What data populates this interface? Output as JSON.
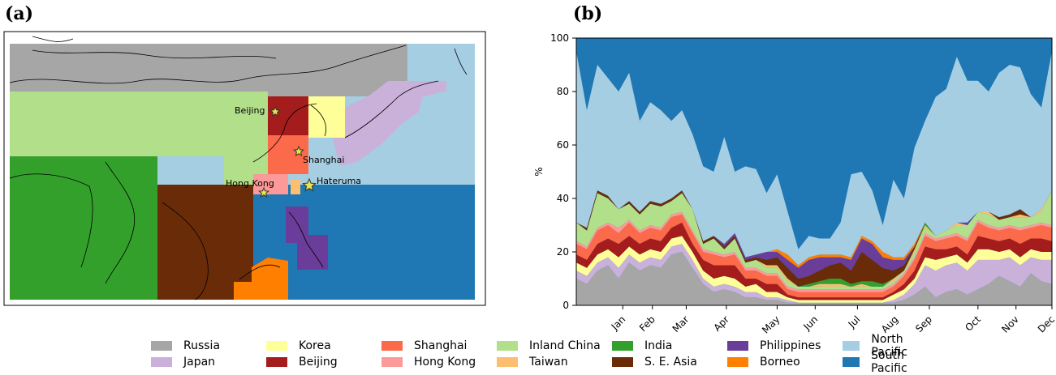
{
  "panels": {
    "a": "(a)",
    "b": "(b)"
  },
  "colors": {
    "russia": "#a6a6a6",
    "japan": "#c9b1d9",
    "korea": "#ffff99",
    "beijing": "#a51c1c",
    "shanghai": "#fb6a4a",
    "hongkong": "#fb9a99",
    "inland_china": "#b2df8a",
    "taiwan": "#fdbf6f",
    "india": "#33a02c",
    "se_asia": "#6a2c08",
    "philippines": "#6a3d9a",
    "borneo": "#ff7f00",
    "north_pacific": "#a6cee3",
    "south_pacific": "#1f78b4"
  },
  "map_labels": {
    "beijing": "Beijing",
    "shanghai": "Shanghai",
    "hongkong": "Hong Kong",
    "hateruma": "Hateruma"
  },
  "legend": [
    {
      "key": "russia",
      "label": "Russia"
    },
    {
      "key": "japan",
      "label": "Japan"
    },
    {
      "key": "korea",
      "label": "Korea"
    },
    {
      "key": "beijing",
      "label": "Beijing"
    },
    {
      "key": "shanghai",
      "label": "Shanghai"
    },
    {
      "key": "hongkong",
      "label": "Hong Kong"
    },
    {
      "key": "inland_china",
      "label": "Inland China"
    },
    {
      "key": "taiwan",
      "label": "Taiwan"
    },
    {
      "key": "india",
      "label": "India"
    },
    {
      "key": "se_asia",
      "label": "S. E. Asia"
    },
    {
      "key": "philippines",
      "label": "Philippines"
    },
    {
      "key": "borneo",
      "label": "Borneo"
    },
    {
      "key": "north_pacific",
      "label": "North Pacific"
    },
    {
      "key": "south_pacific",
      "label": "South Pacific"
    }
  ],
  "chart_data": {
    "type": "area",
    "ylabel": "%",
    "ylim": [
      0,
      100
    ],
    "yticks": [
      0,
      20,
      40,
      60,
      80,
      100
    ],
    "xticks": [
      {
        "label": "Jan",
        "x": 4.4
      },
      {
        "label": "Feb",
        "x": 7.2
      },
      {
        "label": "Mar",
        "x": 10.4
      },
      {
        "label": "Apr",
        "x": 14.2
      },
      {
        "label": "May",
        "x": 19.0
      },
      {
        "label": "Jun",
        "x": 22.6
      },
      {
        "label": "Jul",
        "x": 26.6
      },
      {
        "label": "Aug",
        "x": 30.2
      },
      {
        "label": "Sep",
        "x": 33.4
      },
      {
        "label": "Oct",
        "x": 38.0
      },
      {
        "label": "Nov",
        "x": 41.6
      },
      {
        "label": "Dec",
        "x": 45.0
      }
    ],
    "x": [
      0,
      1,
      2,
      3,
      4,
      5,
      6,
      7,
      8,
      9,
      10,
      11,
      12,
      13,
      14,
      15,
      16,
      17,
      18,
      19,
      20,
      21,
      22,
      23,
      24,
      25,
      26,
      27,
      28,
      29,
      30,
      31,
      32,
      33,
      34,
      35,
      36,
      37,
      38,
      39,
      40,
      41,
      42,
      43,
      44,
      45
    ],
    "stack_order": [
      "russia",
      "japan",
      "korea",
      "beijing",
      "shanghai",
      "hongkong",
      "inland_china",
      "taiwan",
      "india",
      "se_asia",
      "philippines",
      "borneo",
      "north_pacific",
      "south_pacific"
    ],
    "series": [
      {
        "key": "russia",
        "values": [
          10,
          8,
          13,
          15,
          10,
          16,
          13,
          15,
          14,
          19,
          20,
          14,
          8,
          5,
          6,
          5,
          3,
          3,
          2,
          2,
          1,
          1,
          1,
          1,
          1,
          1,
          1,
          1,
          1,
          1,
          1,
          2,
          4,
          7,
          3,
          5,
          6,
          4,
          6,
          8,
          11,
          9,
          7,
          12,
          9,
          8
        ]
      },
      {
        "key": "japan",
        "values": [
          3,
          3,
          3,
          3,
          4,
          3,
          3,
          3,
          3,
          3,
          3,
          3,
          2,
          2,
          2,
          2,
          2,
          2,
          1,
          1,
          1,
          0,
          0,
          0,
          0,
          0,
          0,
          0,
          0,
          0,
          1,
          2,
          4,
          8,
          10,
          10,
          10,
          9,
          11,
          9,
          6,
          9,
          8,
          6,
          8,
          9
        ]
      },
      {
        "key": "korea",
        "values": [
          3,
          3,
          3,
          3,
          4,
          3,
          3,
          3,
          3,
          3,
          3,
          3,
          3,
          3,
          3,
          3,
          2,
          3,
          2,
          2,
          1,
          1,
          1,
          1,
          1,
          1,
          1,
          1,
          1,
          1,
          2,
          2,
          2,
          3,
          4,
          3,
          3,
          3,
          4,
          4,
          3,
          3,
          3,
          3,
          3,
          3
        ]
      },
      {
        "key": "beijing",
        "values": [
          3,
          3,
          4,
          4,
          5,
          4,
          4,
          4,
          4,
          4,
          5,
          3,
          4,
          5,
          4,
          5,
          3,
          2,
          3,
          3,
          1,
          1,
          1,
          1,
          1,
          1,
          1,
          1,
          1,
          1,
          1,
          2,
          3,
          4,
          4,
          3,
          3,
          3,
          5,
          4,
          4,
          4,
          5,
          4,
          5,
          4
        ]
      },
      {
        "key": "shanghai",
        "values": [
          4,
          4,
          5,
          5,
          4,
          5,
          4,
          4,
          4,
          4,
          3,
          4,
          3,
          4,
          3,
          4,
          3,
          3,
          3,
          3,
          2,
          2,
          2,
          2,
          2,
          2,
          2,
          2,
          2,
          2,
          2,
          3,
          4,
          4,
          3,
          4,
          4,
          5,
          5,
          4,
          4,
          4,
          5,
          4,
          5,
          5
        ]
      },
      {
        "key": "hongkong",
        "values": [
          1,
          1,
          1,
          1,
          2,
          1,
          1,
          1,
          1,
          1,
          1,
          1,
          1,
          1,
          1,
          1,
          1,
          1,
          1,
          1,
          1,
          1,
          1,
          1,
          1,
          1,
          1,
          1,
          1,
          1,
          1,
          1,
          1,
          1,
          1,
          1,
          1,
          1,
          1,
          1,
          1,
          1,
          1,
          1,
          1,
          1
        ]
      },
      {
        "key": "inland_china",
        "values": [
          7,
          6,
          13,
          9,
          7,
          6,
          6,
          8,
          8,
          5,
          7,
          8,
          2,
          5,
          2,
          5,
          2,
          3,
          2,
          2,
          2,
          1,
          1,
          1,
          1,
          1,
          1,
          1,
          1,
          1,
          1,
          1,
          2,
          2,
          1,
          2,
          3,
          5,
          3,
          4,
          3,
          3,
          4,
          3,
          4,
          13
        ]
      },
      {
        "key": "taiwan",
        "values": [
          0,
          0,
          0,
          0,
          0,
          0,
          0,
          0,
          0,
          0,
          0,
          0,
          0,
          0,
          0,
          0,
          0,
          0,
          1,
          1,
          1,
          0,
          0,
          1,
          1,
          1,
          0,
          1,
          0,
          0,
          1,
          0,
          1,
          1,
          0,
          0,
          1,
          0,
          0,
          1,
          0,
          0,
          1,
          0,
          1,
          0
        ]
      },
      {
        "key": "india",
        "values": [
          0,
          0,
          0,
          0,
          0,
          0,
          0,
          0,
          0,
          0,
          0,
          0,
          0,
          0,
          0,
          0,
          0,
          0,
          0,
          0,
          0,
          0,
          1,
          1,
          2,
          2,
          1,
          1,
          2,
          1,
          0,
          0,
          0,
          1,
          0,
          0,
          0,
          0,
          0,
          0,
          0,
          0,
          0,
          0,
          0,
          0
        ]
      },
      {
        "key": "se_asia",
        "values": [
          0,
          1,
          1,
          1,
          0,
          1,
          1,
          1,
          1,
          1,
          1,
          0,
          1,
          1,
          1,
          1,
          1,
          1,
          2,
          3,
          4,
          3,
          3,
          4,
          5,
          6,
          5,
          11,
          8,
          6,
          3,
          2,
          1,
          0,
          0,
          0,
          0,
          0,
          0,
          0,
          1,
          1,
          2,
          0,
          0,
          0
        ]
      },
      {
        "key": "philippines",
        "values": [
          0,
          0,
          0,
          0,
          0,
          0,
          0,
          0,
          0,
          0,
          0,
          0,
          0,
          0,
          1,
          1,
          1,
          1,
          3,
          2,
          3,
          4,
          6,
          5,
          3,
          2,
          4,
          5,
          6,
          4,
          4,
          2,
          0,
          0,
          0,
          0,
          0,
          1,
          0,
          0,
          0,
          0,
          0,
          0,
          0,
          0
        ]
      },
      {
        "key": "borneo",
        "values": [
          0,
          0,
          0,
          0,
          0,
          0,
          0,
          0,
          0,
          0,
          0,
          0,
          0,
          0,
          0,
          0,
          0,
          0,
          0,
          1,
          2,
          1,
          1,
          1,
          1,
          1,
          1,
          1,
          1,
          2,
          1,
          1,
          1,
          0,
          0,
          0,
          0,
          0,
          0,
          0,
          0,
          0,
          0,
          0,
          0,
          0
        ]
      },
      {
        "key": "north_pacific",
        "values": [
          64,
          44,
          47,
          44,
          44,
          48,
          34,
          37,
          35,
          29,
          30,
          28,
          28,
          24,
          40,
          23,
          34,
          32,
          22,
          28,
          16,
          6,
          8,
          6,
          6,
          12,
          31,
          24,
          19,
          10,
          29,
          22,
          36,
          38,
          52,
          53,
          62,
          53,
          49,
          45,
          54,
          56,
          53,
          46,
          38,
          52
        ]
      }
    ]
  }
}
